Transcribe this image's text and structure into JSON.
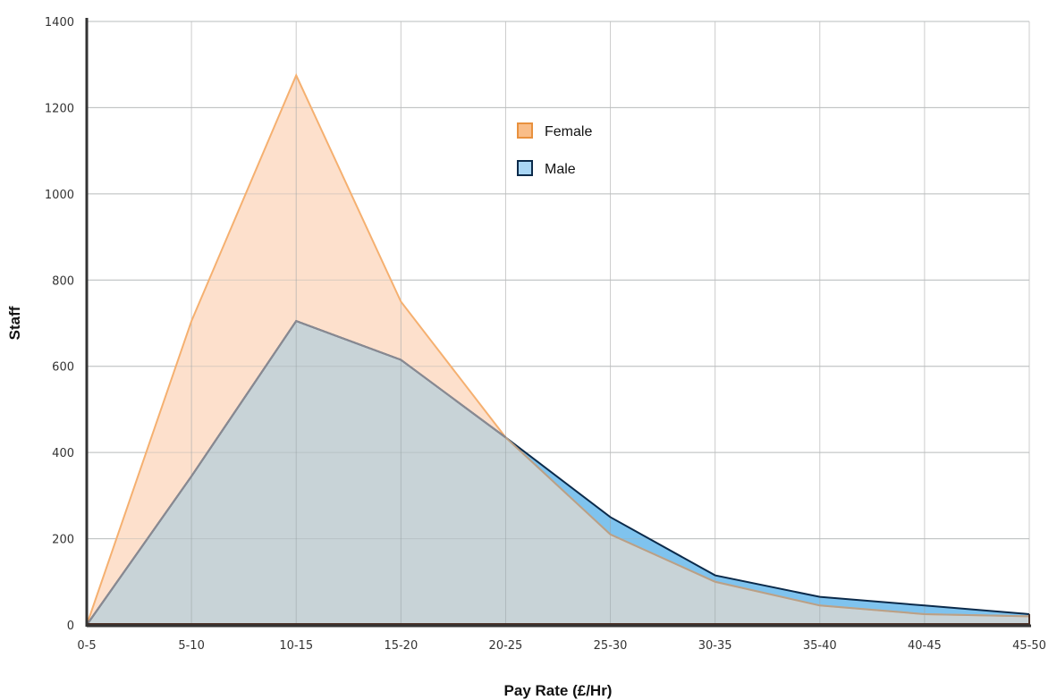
{
  "chart_data": {
    "type": "area",
    "categories": [
      "0-5",
      "5-10",
      "10-15",
      "15-20",
      "20-25",
      "25-30",
      "30-35",
      "35-40",
      "40-45",
      "45-50"
    ],
    "series": [
      {
        "name": "Female",
        "values": [
          0,
          705,
          1275,
          750,
          435,
          210,
          100,
          45,
          25,
          20
        ],
        "fill": "#fde0cc",
        "stroke": "#f5b070",
        "swatch_fill": "#f9bd88",
        "swatch_stroke": "#e8913e"
      },
      {
        "name": "Male",
        "values": [
          0,
          345,
          705,
          615,
          435,
          250,
          115,
          65,
          45,
          25
        ],
        "fill": "#7fc3ee",
        "stroke": "#0b2a4a",
        "swatch_fill": "#a9d6f5",
        "swatch_stroke": "#0b2a4a"
      }
    ],
    "overlap_fill": "#c8d3d7",
    "overlap_stroke": "#8a8a92",
    "xlabel": "Pay Rate (£/Hr)",
    "ylabel": "Staff",
    "ylim": [
      0,
      1400
    ],
    "yticks": [
      0,
      200,
      400,
      600,
      800,
      1000,
      1200,
      1400
    ],
    "grid": true,
    "legend_position": "top-center"
  }
}
